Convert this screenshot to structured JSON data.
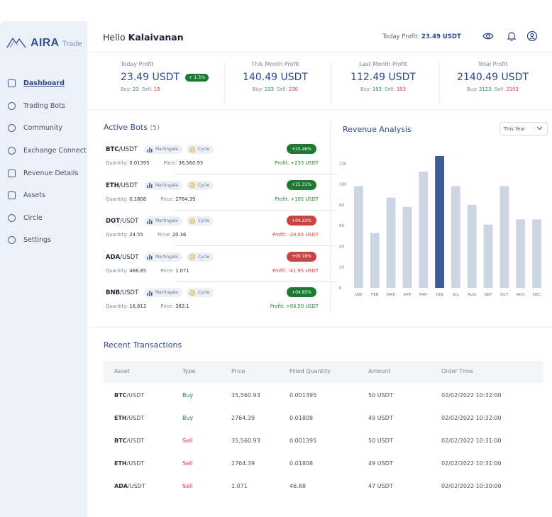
{
  "brand": {
    "name": "AIRA",
    "sub": "Trade"
  },
  "sidebar": {
    "items": [
      {
        "label": "Dashboard",
        "icon": "dashboard-icon",
        "active": true
      },
      {
        "label": "Trading Bots",
        "icon": "shield-icon"
      },
      {
        "label": "Community",
        "icon": "users-icon"
      },
      {
        "label": "Exchange Connect",
        "icon": "exchange-icon"
      },
      {
        "label": "Revenue Details",
        "icon": "chart-icon"
      },
      {
        "label": "Assets",
        "icon": "wallet-icon"
      },
      {
        "label": "Circle",
        "icon": "circle-icon"
      },
      {
        "label": "Settings",
        "icon": "settings-icon"
      }
    ]
  },
  "header": {
    "greeting": "Hello",
    "user": "Kalaivanan",
    "today_label": "Today Profit:",
    "today_value": "23.49 USDT"
  },
  "stats": [
    {
      "title": "Today Profit",
      "value": "23.49 USDT",
      "pill": "+ 1.5%",
      "buy_label": "Buy:",
      "buy": "23",
      "sell_label": "Sell:",
      "sell": "19"
    },
    {
      "title": "This Month Profit",
      "value": "140.49 USDT",
      "buy_label": "Buy:",
      "buy": "233",
      "sell_label": "Sell:",
      "sell": "230"
    },
    {
      "title": "Last Month Profit",
      "value": "112.49 USDT",
      "buy_label": "Buy:",
      "buy": "193",
      "sell_label": "Sell:",
      "sell": "193"
    },
    {
      "title": "Total Profit",
      "value": "2140.49 USDT",
      "buy_label": "Buy:",
      "buy": "2123",
      "sell_label": "Sell:",
      "sell": "2103"
    }
  ],
  "bots": {
    "title": "Active Bots",
    "count": "(5)",
    "tag1": "Martingale",
    "tag2": "Cycle",
    "qty_label": "Quantity:",
    "price_label": "Pirce:",
    "profit_label": "Profit:",
    "items": [
      {
        "base": "BTC",
        "quote": "/USDT",
        "qty": "0.01395",
        "price": "38,560.93",
        "change": "+25.46%",
        "profit": "+233 USDT",
        "up": true
      },
      {
        "base": "ETH",
        "quote": "/USDT",
        "qty": "0.1808",
        "price": "2764.39",
        "change": "+15.31%",
        "profit": "+105 USDT",
        "up": true
      },
      {
        "base": "DOT",
        "quote": "/USDT",
        "qty": "24.55",
        "price": "20.36",
        "change": "+04.22%",
        "profit": "-20.05 USDT",
        "up": false
      },
      {
        "base": "ADA",
        "quote": "/USDT",
        "qty": "466.85",
        "price": "1.071",
        "change": "+09.18%",
        "profit": "-41.95 USDT",
        "up": false
      },
      {
        "base": "BNB",
        "quote": "/USDT",
        "qty": "16,813",
        "price": "383.1",
        "change": "+04.85%",
        "profit": "+08.50 USDT",
        "up": true
      }
    ]
  },
  "revenue": {
    "title": "Revenue Analysis",
    "filter": "This Year"
  },
  "chart_data": {
    "type": "bar",
    "categories": [
      "JAN",
      "FEB",
      "MAR",
      "APR",
      "MAY",
      "JUN",
      "JUL",
      "AUG",
      "SEP",
      "OCT",
      "NOV",
      "DEC"
    ],
    "values": [
      98,
      53,
      87,
      78,
      112,
      127,
      98,
      80,
      61,
      98,
      66,
      66
    ],
    "highlight_index": 5,
    "yticks": [
      0,
      20,
      40,
      60,
      80,
      100,
      120
    ],
    "ylim": [
      0,
      127
    ],
    "colors": {
      "bar": "#ccd5e3",
      "highlight": "#3d5a99"
    },
    "title": "",
    "xlabel": "",
    "ylabel": "",
    "grid": false
  },
  "transactions": {
    "title": "Recent Transactions",
    "headers": [
      "Asset",
      "Type",
      "Price",
      "Filled Quantity",
      "Amount",
      "Order Time"
    ],
    "rows": [
      {
        "base": "BTC",
        "quote": "/USDT",
        "type": "Buy",
        "price": "35,560.93",
        "filled": "0.001395",
        "amount": "50 USDT",
        "time": "02/02/2022 10:32:00"
      },
      {
        "base": "ETH",
        "quote": "/USDT",
        "type": "Buy",
        "price": "2764.39",
        "filled": "0.01808",
        "amount": "49 USDT",
        "time": "02/02/2022 10:32:00"
      },
      {
        "base": "BTC",
        "quote": "/USDT",
        "type": "Sell",
        "price": "35,560.93",
        "filled": "0.001395",
        "amount": "50 USDT",
        "time": "02/02/2022 10:31:00"
      },
      {
        "base": "ETH",
        "quote": "/USDT",
        "type": "Sell",
        "price": "2764.39",
        "filled": "0.01808",
        "amount": "49 USDT",
        "time": "02/02/2022 10:31:00"
      },
      {
        "base": "ADA",
        "quote": "/USDT",
        "type": "Sell",
        "price": "1.071",
        "filled": "46.68",
        "amount": "47 USDT",
        "time": "02/02/2022 10:30:00"
      }
    ]
  }
}
